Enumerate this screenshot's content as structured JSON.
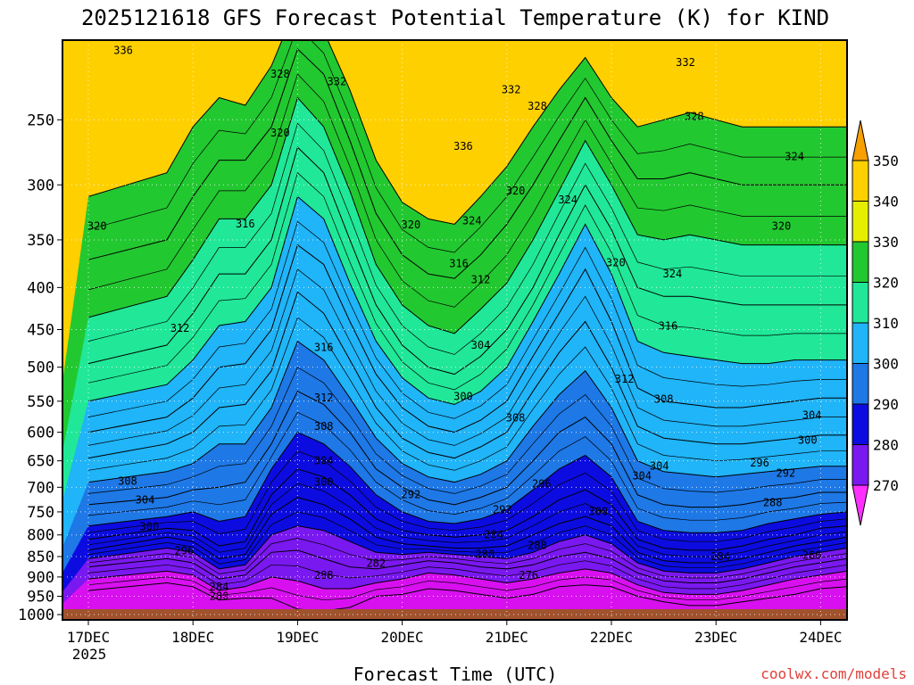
{
  "chart_data": {
    "type": "contour",
    "title": "2025121618 GFS Forecast Potential Temperature (K) for KIND",
    "xlabel": "Forecast Time (UTC)",
    "ylabel": "",
    "credit": "coolwx.com/models",
    "x_ticks": [
      "17DEC",
      "18DEC",
      "19DEC",
      "20DEC",
      "21DEC",
      "22DEC",
      "23DEC",
      "24DEC"
    ],
    "x_year_label": "2025",
    "y_ticks": [
      250,
      300,
      350,
      400,
      450,
      500,
      550,
      600,
      650,
      700,
      750,
      800,
      850,
      900,
      950,
      1000
    ],
    "y_range_hpa": [
      200,
      1000
    ],
    "legend": {
      "levels": [
        350,
        340,
        330,
        320,
        310,
        300,
        290,
        280,
        270
      ],
      "colors": [
        "#ffd000",
        "#e6ee00",
        "#22c830",
        "#20e898",
        "#20b4f8",
        "#1e78e6",
        "#0c0ce0",
        "#7a18f0",
        "#d810f0",
        "#ff30ff",
        "#f8a000"
      ]
    },
    "fill_bands": [
      {
        "value": 350,
        "color": "#f8a000"
      },
      {
        "value": 340,
        "color": "#ffd000"
      },
      {
        "value": 336,
        "color": "#e6ee00"
      },
      {
        "value": 330,
        "color": "#22c830"
      },
      {
        "value": 320,
        "color": "#20e898"
      },
      {
        "value": 310,
        "color": "#20b4f8"
      },
      {
        "value": 300,
        "color": "#1e78e6"
      },
      {
        "value": 290,
        "color": "#0c0ce0"
      },
      {
        "value": 280,
        "color": "#7a18f0"
      },
      {
        "value": 270,
        "color": "#d810f0"
      },
      {
        "value": 260,
        "color": "#ff30ff"
      }
    ],
    "ground_color": "#a0522d",
    "time_hours": [
      0,
      18,
      24,
      30,
      36,
      42,
      48,
      54,
      60,
      66,
      72,
      78,
      84,
      90,
      96,
      102,
      108,
      114,
      120,
      126,
      132,
      138,
      144,
      150,
      156,
      162,
      168,
      174,
      180
    ],
    "isentrope_levels": [
      276,
      280,
      284,
      288,
      292,
      296,
      300,
      304,
      308,
      312,
      316,
      320,
      324,
      328,
      332,
      336
    ],
    "isentrope_pressures": [
      [
        935,
        915,
        925,
        960,
        955,
        955,
        985,
        990,
        980,
        950,
        945,
        930,
        935,
        945,
        955,
        945,
        925,
        920,
        925,
        950,
        965,
        975,
        975,
        965,
        955,
        945,
        930,
        925,
        930
      ],
      [
        905,
        885,
        895,
        935,
        925,
        900,
        910,
        930,
        930,
        915,
        905,
        890,
        895,
        905,
        915,
        905,
        890,
        880,
        890,
        920,
        940,
        945,
        945,
        935,
        920,
        905,
        895,
        885,
        895
      ],
      [
        875,
        855,
        865,
        905,
        895,
        840,
        835,
        855,
        875,
        880,
        870,
        860,
        865,
        875,
        880,
        870,
        850,
        840,
        855,
        890,
        910,
        915,
        915,
        905,
        890,
        875,
        865,
        855,
        865
      ],
      [
        855,
        830,
        840,
        880,
        870,
        800,
        780,
        790,
        815,
        840,
        845,
        840,
        845,
        850,
        855,
        840,
        815,
        800,
        820,
        865,
        885,
        890,
        890,
        880,
        865,
        850,
        840,
        830,
        840
      ],
      [
        835,
        805,
        815,
        855,
        845,
        755,
        720,
        735,
        765,
        805,
        820,
        825,
        830,
        830,
        825,
        800,
        775,
        760,
        780,
        840,
        860,
        865,
        865,
        855,
        840,
        825,
        815,
        805,
        815
      ],
      [
        810,
        785,
        790,
        825,
        815,
        715,
        665,
        680,
        715,
        765,
        790,
        800,
        805,
        800,
        790,
        760,
        725,
        705,
        735,
        810,
        830,
        835,
        835,
        825,
        810,
        800,
        785,
        780,
        790
      ],
      [
        780,
        760,
        750,
        770,
        760,
        665,
        600,
        620,
        660,
        715,
        750,
        770,
        775,
        765,
        745,
        705,
        665,
        640,
        680,
        770,
        790,
        795,
        795,
        790,
        775,
        765,
        755,
        750,
        760
      ],
      [
        735,
        720,
        705,
        700,
        690,
        620,
        535,
        555,
        600,
        665,
        700,
        725,
        735,
        720,
        700,
        650,
        600,
        575,
        620,
        715,
        735,
        740,
        740,
        735,
        725,
        720,
        710,
        710,
        720
      ],
      [
        690,
        670,
        655,
        620,
        620,
        560,
        465,
        490,
        545,
        610,
        655,
        680,
        690,
        675,
        650,
        590,
        540,
        505,
        560,
        650,
        670,
        675,
        680,
        675,
        670,
        665,
        660,
        660,
        670
      ],
      [
        645,
        620,
        600,
        560,
        555,
        505,
        405,
        430,
        490,
        560,
        610,
        635,
        645,
        625,
        600,
        535,
        480,
        440,
        500,
        590,
        610,
        615,
        620,
        620,
        615,
        610,
        605,
        605,
        615
      ],
      [
        600,
        575,
        545,
        500,
        495,
        450,
        355,
        375,
        440,
        510,
        560,
        590,
        600,
        580,
        550,
        485,
        430,
        380,
        440,
        530,
        550,
        555,
        560,
        560,
        555,
        550,
        545,
        545,
        555
      ],
      [
        550,
        525,
        490,
        445,
        440,
        400,
        310,
        330,
        395,
        465,
        515,
        545,
        555,
        535,
        500,
        440,
        385,
        335,
        385,
        465,
        480,
        485,
        490,
        495,
        495,
        490,
        490,
        490,
        500
      ],
      [
        495,
        470,
        430,
        385,
        385,
        350,
        270,
        290,
        350,
        420,
        470,
        500,
        510,
        485,
        450,
        400,
        345,
        300,
        340,
        400,
        410,
        410,
        415,
        420,
        420,
        420,
        420,
        420,
        430
      ],
      [
        435,
        410,
        370,
        330,
        330,
        300,
        235,
        255,
        305,
        375,
        420,
        445,
        455,
        425,
        395,
        350,
        305,
        265,
        300,
        345,
        350,
        345,
        350,
        355,
        355,
        355,
        355,
        355,
        365
      ],
      [
        370,
        350,
        310,
        280,
        280,
        255,
        205,
        220,
        265,
        325,
        365,
        385,
        390,
        365,
        335,
        300,
        265,
        235,
        265,
        295,
        295,
        290,
        295,
        300,
        300,
        300,
        300,
        300,
        310
      ],
      [
        310,
        290,
        255,
        235,
        240,
        215,
        180,
        195,
        230,
        280,
        315,
        330,
        335,
        310,
        285,
        255,
        230,
        210,
        235,
        255,
        250,
        245,
        250,
        255,
        255,
        255,
        255,
        255,
        265
      ]
    ],
    "contour_labels": [
      {
        "text": "336",
        "t": 8,
        "p": 208
      },
      {
        "text": "328",
        "t": 44,
        "p": 222
      },
      {
        "text": "332",
        "t": 57,
        "p": 227
      },
      {
        "text": "320",
        "t": 44,
        "p": 262
      },
      {
        "text": "336",
        "t": 86,
        "p": 272
      },
      {
        "text": "332",
        "t": 97,
        "p": 232
      },
      {
        "text": "328",
        "t": 103,
        "p": 243
      },
      {
        "text": "320",
        "t": 98,
        "p": 308
      },
      {
        "text": "324",
        "t": 110,
        "p": 316
      },
      {
        "text": "324",
        "t": 88,
        "p": 335
      },
      {
        "text": "320",
        "t": 74,
        "p": 339
      },
      {
        "text": "316",
        "t": 85,
        "p": 378
      },
      {
        "text": "312",
        "t": 90,
        "p": 395
      },
      {
        "text": "316",
        "t": 36,
        "p": 338
      },
      {
        "text": "320",
        "t": 2,
        "p": 340
      },
      {
        "text": "312",
        "t": 21,
        "p": 453
      },
      {
        "text": "316",
        "t": 54,
        "p": 478
      },
      {
        "text": "304",
        "t": 90,
        "p": 475
      },
      {
        "text": "312",
        "t": 54,
        "p": 550
      },
      {
        "text": "308",
        "t": 54,
        "p": 596
      },
      {
        "text": "300",
        "t": 86,
        "p": 548
      },
      {
        "text": "308",
        "t": 98,
        "p": 582
      },
      {
        "text": "312",
        "t": 123,
        "p": 522
      },
      {
        "text": "308",
        "t": 132,
        "p": 552
      },
      {
        "text": "316",
        "t": 133,
        "p": 450
      },
      {
        "text": "320",
        "t": 121,
        "p": 377
      },
      {
        "text": "324",
        "t": 134,
        "p": 389
      },
      {
        "text": "328",
        "t": 139,
        "p": 250
      },
      {
        "text": "332",
        "t": 137,
        "p": 215
      },
      {
        "text": "324",
        "t": 162,
        "p": 280
      },
      {
        "text": "320",
        "t": 159,
        "p": 340
      },
      {
        "text": "304",
        "t": 54,
        "p": 656
      },
      {
        "text": "300",
        "t": 54,
        "p": 697
      },
      {
        "text": "304",
        "t": 131,
        "p": 666
      },
      {
        "text": "296",
        "t": 104,
        "p": 700
      },
      {
        "text": "308",
        "t": 9,
        "p": 695
      },
      {
        "text": "304",
        "t": 13,
        "p": 733
      },
      {
        "text": "300",
        "t": 14,
        "p": 790
      },
      {
        "text": "296",
        "t": 22,
        "p": 845
      },
      {
        "text": "292",
        "t": 74,
        "p": 722
      },
      {
        "text": "292",
        "t": 95,
        "p": 753
      },
      {
        "text": "284",
        "t": 93,
        "p": 808
      },
      {
        "text": "288",
        "t": 103,
        "p": 832
      },
      {
        "text": "280",
        "t": 91,
        "p": 853
      },
      {
        "text": "276",
        "t": 101,
        "p": 905
      },
      {
        "text": "282",
        "t": 66,
        "p": 875
      },
      {
        "text": "288",
        "t": 54,
        "p": 905
      },
      {
        "text": "284",
        "t": 30,
        "p": 935
      },
      {
        "text": "280",
        "t": 30,
        "p": 960
      },
      {
        "text": "300",
        "t": 117,
        "p": 757
      },
      {
        "text": "304",
        "t": 127,
        "p": 685
      },
      {
        "text": "296",
        "t": 154,
        "p": 660
      },
      {
        "text": "292",
        "t": 160,
        "p": 680
      },
      {
        "text": "288",
        "t": 157,
        "p": 738
      },
      {
        "text": "300",
        "t": 165,
        "p": 620
      },
      {
        "text": "304",
        "t": 166,
        "p": 578
      },
      {
        "text": "284",
        "t": 145,
        "p": 858
      },
      {
        "text": "280",
        "t": 166,
        "p": 855
      },
      {
        "text": "276",
        "t": 178,
        "p": 895
      },
      {
        "text": "284",
        "t": 194,
        "p": 895
      },
      {
        "text": "288",
        "t": 193,
        "p": 847
      },
      {
        "text": "292",
        "t": 195,
        "p": 790
      },
      {
        "text": "296",
        "t": 196,
        "p": 745
      },
      {
        "text": "300",
        "t": 198,
        "p": 725
      },
      {
        "text": "304",
        "t": 199,
        "p": 700
      },
      {
        "text": "308",
        "t": 194,
        "p": 610
      },
      {
        "text": "312",
        "t": 193,
        "p": 525
      },
      {
        "text": "316",
        "t": 203,
        "p": 445
      },
      {
        "text": "316",
        "t": 180,
        "p": 427
      },
      {
        "text": "320",
        "t": 183,
        "p": 370
      },
      {
        "text": "320",
        "t": 205,
        "p": 298
      },
      {
        "text": "324",
        "t": 204,
        "p": 238
      },
      {
        "text": "328",
        "t": 200,
        "p": 220
      },
      {
        "text": "332",
        "t": 200,
        "p": 212
      },
      {
        "text": "280",
        "t": 208,
        "p": 950
      }
    ]
  }
}
